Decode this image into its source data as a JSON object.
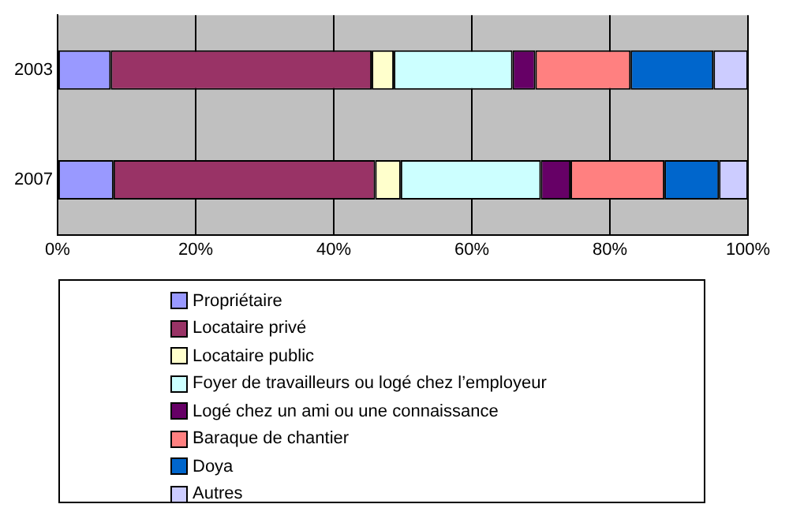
{
  "chart_data": {
    "type": "bar",
    "orientation": "horizontal",
    "stacked": true,
    "categories": [
      "2003",
      "2007"
    ],
    "series": [
      {
        "name": "Propriétaire",
        "color": "#9999ff",
        "values": [
          7.7,
          8.1
        ]
      },
      {
        "name": "Locataire privé",
        "color": "#993366",
        "values": [
          37.8,
          37.9
        ]
      },
      {
        "name": "Locataire public",
        "color": "#ffffcc",
        "values": [
          3.2,
          3.7
        ]
      },
      {
        "name": "Foyer de travailleurs ou logé chez l’employeur",
        "color": "#ccffff",
        "values": [
          17.2,
          20.3
        ]
      },
      {
        "name": "Logé chez un ami ou une connaissance",
        "color": "#660066",
        "values": [
          3.3,
          4.3
        ]
      },
      {
        "name": "Baraque de chantier",
        "color": "#ff8080",
        "values": [
          13.8,
          13.6
        ]
      },
      {
        "name": "Doya",
        "color": "#0066cc",
        "values": [
          12.0,
          7.9
        ]
      },
      {
        "name": "Autres",
        "color": "#ccccff",
        "values": [
          5.0,
          4.2
        ]
      }
    ],
    "xlim": [
      0,
      100
    ],
    "xticks": [
      {
        "value": 0,
        "label": "0%"
      },
      {
        "value": 20,
        "label": "20%"
      },
      {
        "value": 40,
        "label": "40%"
      },
      {
        "value": 60,
        "label": "60%"
      },
      {
        "value": 80,
        "label": "80%"
      },
      {
        "value": 100,
        "label": "100%"
      }
    ],
    "grid": "x",
    "legend": "bottom"
  }
}
